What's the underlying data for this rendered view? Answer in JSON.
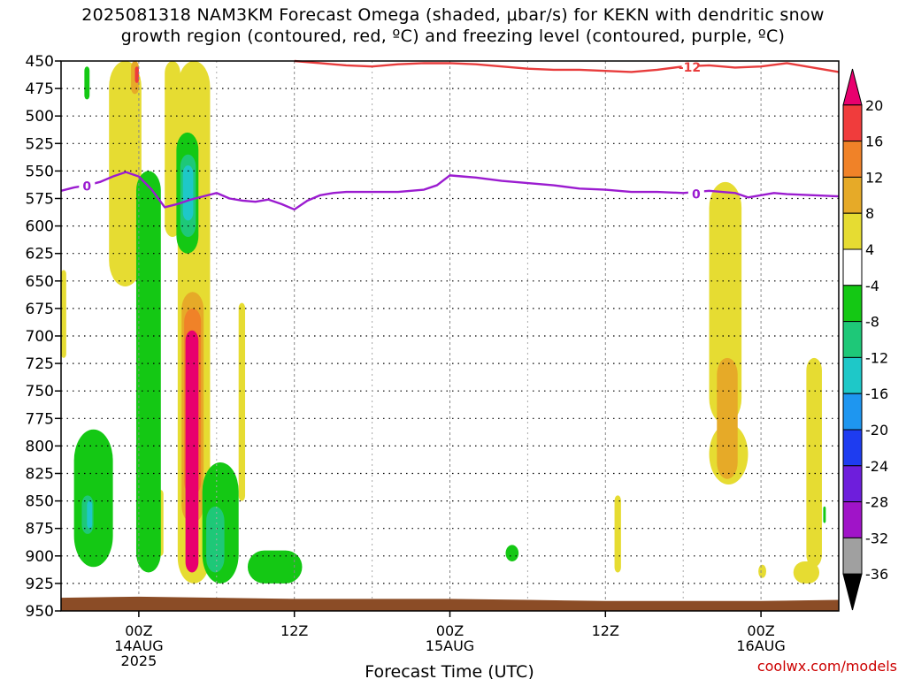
{
  "title": {
    "line1": "2025081318 NAM3KM Forecast Omega (shaded, μbar/s) for KEKN with dendritic snow",
    "line2": "growth region (contoured, red, ºC) and freezing level (contoured, purple, ºC)"
  },
  "credit": "coolwx.com/models",
  "chart_data": {
    "type": "heatmap",
    "title": "2025081318 NAM3KM Forecast Omega (shaded, μbar/s) for KEKN with dendritic snow growth region (contoured, red, ºC) and freezing level (contoured, purple, ºC)",
    "xlabel": "Forecast Time (UTC)",
    "ylabel": "",
    "x_range_hours": [
      -6,
      54
    ],
    "x_ticks": [
      {
        "h": 0,
        "labels": [
          "00Z",
          "14AUG",
          "2025"
        ]
      },
      {
        "h": 12,
        "labels": [
          "12Z"
        ]
      },
      {
        "h": 24,
        "labels": [
          "00Z",
          "15AUG"
        ]
      },
      {
        "h": 36,
        "labels": [
          "12Z"
        ]
      },
      {
        "h": 48,
        "labels": [
          "00Z",
          "16AUG"
        ]
      }
    ],
    "y_levels_mb": [
      450,
      475,
      500,
      525,
      550,
      575,
      600,
      625,
      650,
      675,
      700,
      725,
      750,
      775,
      800,
      825,
      850,
      875,
      900,
      925,
      950
    ],
    "y_range_mb": [
      450,
      950
    ],
    "grid": true,
    "colorbar": {
      "labels": [
        "20",
        "16",
        "12",
        "8",
        "4",
        "-4",
        "-8",
        "-12",
        "-16",
        "-20",
        "-24",
        "-28",
        "-32",
        "-36"
      ],
      "colors": [
        "#e8006e",
        "#f03c3c",
        "#f08228",
        "#e6aa28",
        "#e6dc32",
        "#ffffff",
        "#14c814",
        "#1ec878",
        "#1ec8c8",
        "#1e96f0",
        "#1e3cf0",
        "#6e1edc",
        "#a014c8",
        "#a0a0a0",
        "#000000"
      ]
    },
    "contours": [
      {
        "kind": "freezing-level",
        "label": "0",
        "color": "#9b1cd0",
        "points": [
          [
            -6,
            568
          ],
          [
            -5,
            565
          ],
          [
            -4,
            563
          ],
          [
            -3,
            560
          ],
          [
            -2,
            555
          ],
          [
            -1,
            551
          ],
          [
            0,
            555
          ],
          [
            1,
            567
          ],
          [
            2,
            583
          ],
          [
            3,
            580
          ],
          [
            4,
            576
          ],
          [
            5,
            573
          ],
          [
            6,
            570
          ],
          [
            7,
            575
          ],
          [
            8,
            577
          ],
          [
            9,
            578
          ],
          [
            10,
            576
          ],
          [
            11,
            580
          ],
          [
            12,
            585
          ],
          [
            13,
            577
          ],
          [
            14,
            572
          ],
          [
            15,
            570
          ],
          [
            16,
            569
          ],
          [
            18,
            569
          ],
          [
            20,
            569
          ],
          [
            22,
            567
          ],
          [
            23,
            563
          ],
          [
            24,
            554
          ],
          [
            25,
            555
          ],
          [
            26,
            556
          ],
          [
            28,
            559
          ],
          [
            30,
            561
          ],
          [
            32,
            563
          ],
          [
            34,
            566
          ],
          [
            36,
            567
          ],
          [
            38,
            569
          ],
          [
            40,
            569
          ],
          [
            42,
            570
          ],
          [
            44,
            568
          ],
          [
            45,
            569
          ],
          [
            46,
            570
          ],
          [
            47,
            574
          ],
          [
            48,
            572
          ],
          [
            49,
            570
          ],
          [
            50,
            571
          ],
          [
            52,
            572
          ],
          [
            54,
            573
          ]
        ],
        "label_at_h": [
          -4,
          43
        ]
      },
      {
        "kind": "dendritic-snow-growth",
        "label": "-12",
        "color": "#e83c3c",
        "points": [
          [
            12,
            450
          ],
          [
            14,
            452
          ],
          [
            16,
            454
          ],
          [
            18,
            455
          ],
          [
            20,
            453
          ],
          [
            22,
            452
          ],
          [
            24,
            452
          ],
          [
            26,
            453
          ],
          [
            28,
            455
          ],
          [
            30,
            457
          ],
          [
            32,
            458
          ],
          [
            34,
            458
          ],
          [
            36,
            459
          ],
          [
            38,
            460
          ],
          [
            40,
            458
          ],
          [
            42,
            455
          ],
          [
            44,
            454
          ],
          [
            46,
            456
          ],
          [
            48,
            455
          ],
          [
            50,
            452
          ],
          [
            52,
            456
          ],
          [
            54,
            460
          ]
        ],
        "label_at_h": [
          42.5
        ]
      }
    ],
    "omega_regions": [
      {
        "level": "4",
        "range_h": [
          -6.0,
          -5.6
        ],
        "range_mb": [
          640,
          720
        ]
      },
      {
        "level": "4",
        "range_h": [
          -2.3,
          0.2
        ],
        "range_mb": [
          450,
          655
        ]
      },
      {
        "level": "4",
        "range_h": [
          2.0,
          3.2
        ],
        "range_mb": [
          450,
          610
        ]
      },
      {
        "level": "4",
        "range_h": [
          3.0,
          5.5
        ],
        "range_mb": [
          450,
          925
        ]
      },
      {
        "level": "4",
        "range_h": [
          4.5,
          5.5
        ],
        "range_mb": [
          590,
          640
        ]
      },
      {
        "level": "4",
        "range_h": [
          7.7,
          8.2
        ],
        "range_mb": [
          670,
          850
        ]
      },
      {
        "level": "4",
        "range_h": [
          1.5,
          1.9
        ],
        "range_mb": [
          840,
          900
        ]
      },
      {
        "level": "4",
        "range_h": [
          44.0,
          46.5
        ],
        "range_mb": [
          560,
          780
        ]
      },
      {
        "level": "4",
        "range_h": [
          44.0,
          47.0
        ],
        "range_mb": [
          780,
          835
        ]
      },
      {
        "level": "4",
        "range_h": [
          51.5,
          52.7
        ],
        "range_mb": [
          720,
          910
        ]
      },
      {
        "level": "4",
        "range_h": [
          50.5,
          52.5
        ],
        "range_mb": [
          905,
          925
        ]
      },
      {
        "level": "4",
        "range_h": [
          47.8,
          48.4
        ],
        "range_mb": [
          908,
          920
        ]
      },
      {
        "level": "4",
        "range_h": [
          36.7,
          37.2
        ],
        "range_mb": [
          845,
          915
        ]
      },
      {
        "level": "8",
        "range_h": [
          -0.6,
          0.0
        ],
        "range_mb": [
          450,
          480
        ]
      },
      {
        "level": "8",
        "range_h": [
          3.3,
          5.0
        ],
        "range_mb": [
          660,
          870
        ]
      },
      {
        "level": "8",
        "range_h": [
          44.6,
          46.2
        ],
        "range_mb": [
          720,
          830
        ]
      },
      {
        "level": "12",
        "range_h": [
          3.5,
          4.8
        ],
        "range_mb": [
          675,
          845
        ]
      },
      {
        "level": "16",
        "range_h": [
          -0.3,
          0.0
        ],
        "range_mb": [
          455,
          470
        ]
      },
      {
        "level": "20",
        "range_h": [
          3.6,
          4.6
        ],
        "range_mb": [
          695,
          915
        ]
      },
      {
        "level": "-4",
        "range_h": [
          -4.2,
          -3.8
        ],
        "range_mb": [
          455,
          485
        ]
      },
      {
        "level": "-4",
        "range_h": [
          -0.2,
          1.7
        ],
        "range_mb": [
          550,
          915
        ]
      },
      {
        "level": "-4",
        "range_h": [
          2.9,
          4.6
        ],
        "range_mb": [
          515,
          625
        ]
      },
      {
        "level": "-4",
        "range_h": [
          -5.0,
          -2.0
        ],
        "range_mb": [
          785,
          910
        ]
      },
      {
        "level": "-4",
        "range_h": [
          4.9,
          7.7
        ],
        "range_mb": [
          815,
          925
        ]
      },
      {
        "level": "-4",
        "range_h": [
          8.4,
          12.6
        ],
        "range_mb": [
          895,
          925
        ]
      },
      {
        "level": "-4",
        "range_h": [
          28.3,
          29.3
        ],
        "range_mb": [
          890,
          905
        ]
      },
      {
        "level": "-4",
        "range_h": [
          52.8,
          53.0
        ],
        "range_mb": [
          855,
          870
        ]
      },
      {
        "level": "-8",
        "range_h": [
          3.2,
          4.4
        ],
        "range_mb": [
          535,
          610
        ]
      },
      {
        "level": "-8",
        "range_h": [
          5.2,
          6.6
        ],
        "range_mb": [
          855,
          915
        ]
      },
      {
        "level": "-8",
        "range_h": [
          -4.4,
          -3.5
        ],
        "range_mb": [
          845,
          880
        ]
      },
      {
        "level": "-12",
        "range_h": [
          3.4,
          4.2
        ],
        "range_mb": [
          545,
          595
        ]
      },
      {
        "level": "-12",
        "range_h": [
          -4.0,
          -3.6
        ],
        "range_mb": [
          850,
          875
        ]
      }
    ],
    "ground_mb": [
      [
        -6,
        938
      ],
      [
        0,
        937
      ],
      [
        12,
        939
      ],
      [
        24,
        939
      ],
      [
        30,
        940
      ],
      [
        36,
        941
      ],
      [
        42,
        941
      ],
      [
        48,
        941
      ],
      [
        54,
        940
      ]
    ]
  }
}
